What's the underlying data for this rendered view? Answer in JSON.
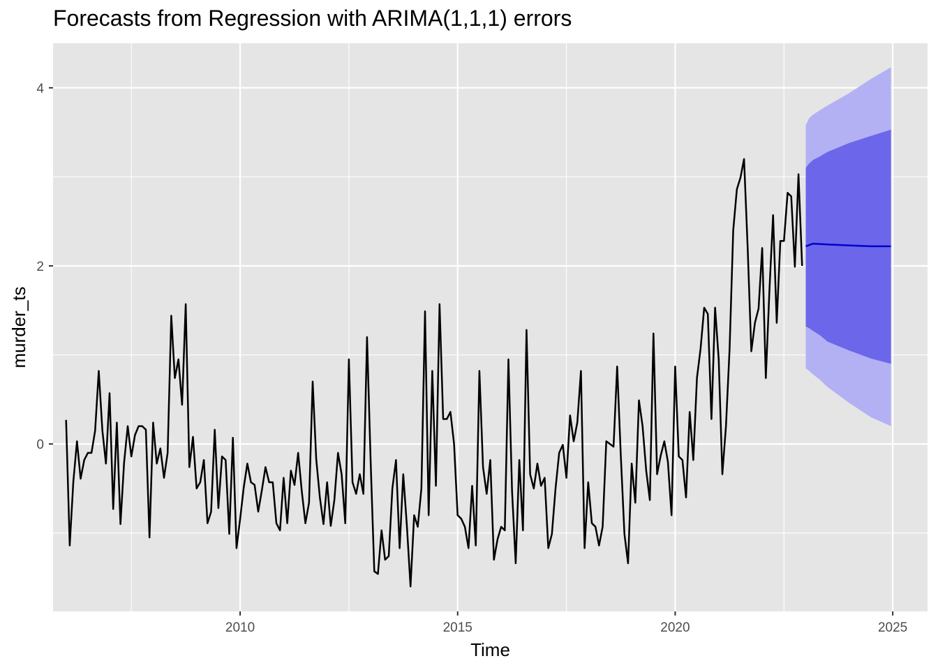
{
  "chart_data": {
    "type": "line",
    "title": "Forecasts from Regression with ARIMA(1,1,1) errors",
    "xlabel": "Time",
    "ylabel": "murder_ts",
    "xlim": [
      2005.7,
      2025.8
    ],
    "ylim": [
      -1.88,
      4.5
    ],
    "x_ticks": [
      2010,
      2015,
      2020,
      2025
    ],
    "x_tick_labels": [
      "2010",
      "2015",
      "2020",
      "2025"
    ],
    "y_ticks": [
      0,
      2,
      4
    ],
    "y_tick_labels": [
      "0",
      "2",
      "4"
    ],
    "grid": true,
    "legend": "none",
    "colors": {
      "panel": "#e5e5e5",
      "grid": "#ffffff",
      "series": "#000000",
      "forecast": "#0000cc",
      "pi80": "#6b66ea",
      "pi95": "#b3b1f4"
    },
    "series": [
      {
        "start": 2006.0,
        "frequency": 12,
        "values": [
          0.27,
          -1.14,
          -0.42,
          0.03,
          -0.39,
          -0.18,
          -0.1,
          -0.1,
          0.15,
          0.82,
          0.15,
          -0.22,
          0.57,
          -0.73,
          0.24,
          -0.9,
          -0.21,
          0.2,
          -0.14,
          0.1,
          0.2,
          0.2,
          0.16,
          -1.05,
          0.24,
          -0.22,
          -0.05,
          -0.38,
          -0.1,
          1.44,
          0.74,
          0.95,
          0.44,
          1.57,
          -0.26,
          0.08,
          -0.5,
          -0.43,
          -0.18,
          -0.89,
          -0.76,
          0.16,
          -0.72,
          -0.14,
          -0.18,
          -1.01,
          0.07,
          -1.17,
          -0.84,
          -0.49,
          -0.22,
          -0.43,
          -0.46,
          -0.76,
          -0.52,
          -0.26,
          -0.43,
          -0.43,
          -0.89,
          -0.97,
          -0.38,
          -0.89,
          -0.3,
          -0.46,
          -0.1,
          -0.53,
          -0.89,
          -0.66,
          0.7,
          -0.17,
          -0.6,
          -0.9,
          -0.43,
          -0.92,
          -0.63,
          -0.1,
          -0.34,
          -0.89,
          0.95,
          -0.43,
          -0.56,
          -0.34,
          -0.56,
          1.2,
          -0.2,
          -1.43,
          -1.46,
          -0.97,
          -1.3,
          -1.26,
          -0.5,
          -0.18,
          -1.17,
          -0.34,
          -0.92,
          -1.6,
          -0.8,
          -0.93,
          -0.5,
          1.49,
          -0.8,
          0.82,
          -0.47,
          1.57,
          0.28,
          0.28,
          0.36,
          0.0,
          -0.8,
          -0.84,
          -0.93,
          -1.17,
          -0.47,
          -1.14,
          0.82,
          -0.26,
          -0.56,
          -0.18,
          -1.3,
          -1.07,
          -0.93,
          -0.97,
          0.95,
          -0.53,
          -1.34,
          -0.18,
          -0.97,
          1.28,
          -0.34,
          -0.5,
          -0.22,
          -0.47,
          -0.38,
          -1.17,
          -1.01,
          -0.5,
          -0.1,
          -0.01,
          -0.38,
          0.32,
          0.03,
          0.24,
          0.82,
          -1.17,
          -0.43,
          -0.89,
          -0.93,
          -1.14,
          -0.93,
          0.03,
          0.0,
          -0.03,
          0.87,
          -0.13,
          -1.01,
          -1.34,
          -0.22,
          -0.66,
          0.49,
          0.2,
          -0.3,
          -0.63,
          1.24,
          -0.34,
          -0.13,
          0.03,
          -0.2,
          -0.8,
          0.87,
          -0.14,
          -0.18,
          -0.6,
          0.36,
          -0.18,
          0.74,
          1.07,
          1.53,
          1.46,
          0.28,
          1.53,
          0.95,
          -0.34,
          0.2,
          1.07,
          2.4,
          2.86,
          2.99,
          3.2,
          2.2,
          1.04,
          1.36,
          1.52,
          2.2,
          0.74,
          1.73,
          2.57,
          1.36,
          2.28,
          2.28,
          2.82,
          2.78,
          1.99,
          3.03,
          2.0
        ]
      },
      {
        "name": "Point forecast",
        "x": [
          2023.0,
          2023.17,
          2023.5,
          2024.0,
          2024.5,
          2024.96
        ],
        "values": [
          2.22,
          2.25,
          2.24,
          2.23,
          2.22,
          2.22
        ]
      },
      {
        "name": "80% interval",
        "x": [
          2023.0,
          2023.08,
          2023.17,
          2023.33,
          2023.5,
          2024.0,
          2024.5,
          2024.96
        ],
        "lower": [
          1.32,
          1.3,
          1.27,
          1.22,
          1.15,
          1.05,
          0.96,
          0.9
        ],
        "upper": [
          3.1,
          3.15,
          3.19,
          3.23,
          3.28,
          3.38,
          3.46,
          3.53
        ]
      },
      {
        "name": "95% interval",
        "x": [
          2023.0,
          2023.08,
          2023.17,
          2023.33,
          2023.5,
          2024.0,
          2024.5,
          2024.96
        ],
        "lower": [
          0.85,
          0.82,
          0.78,
          0.72,
          0.64,
          0.46,
          0.3,
          0.2
        ],
        "upper": [
          3.58,
          3.66,
          3.7,
          3.75,
          3.8,
          3.94,
          4.1,
          4.23
        ]
      }
    ]
  }
}
